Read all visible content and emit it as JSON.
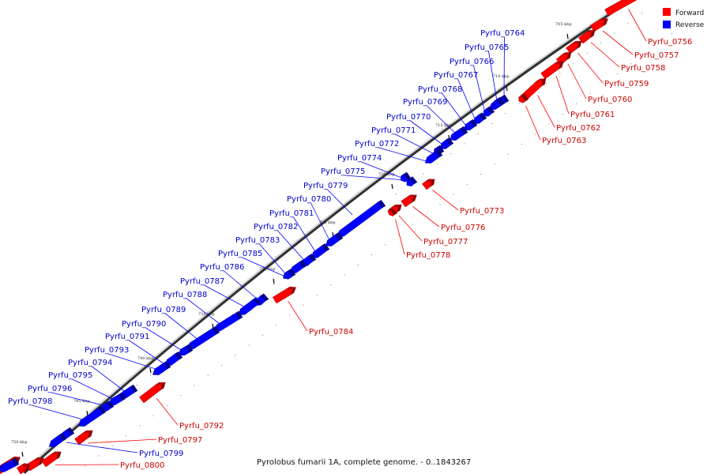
{
  "caption": "Pyrolobus fumarii 1A, complete genome. - 0..1843267",
  "legend": [
    {
      "label": "Forward",
      "color": "#ff0000"
    },
    {
      "label": "Reverse",
      "color": "#0000ff"
    }
  ],
  "scale_ticks": [
    "705 kbp",
    "710 kbp",
    "715 kbp",
    "720 kbp",
    "725 kbp",
    "730 kbp",
    "735 kbp",
    "740 kbp",
    "745 kbp",
    "750 kbp"
  ],
  "forward_genes": [
    "Pyrfu_0756",
    "Pyrfu_0757",
    "Pyrfu_0758",
    "Pyrfu_0759",
    "Pyrfu_0760",
    "Pyrfu_0761",
    "Pyrfu_0762",
    "Pyrfu_0763",
    "Pyrfu_0773",
    "Pyrfu_0776",
    "Pyrfu_0777",
    "Pyrfu_0778",
    "Pyrfu_0784",
    "Pyrfu_0792",
    "Pyrfu_0797",
    "Pyrfu_0800"
  ],
  "reverse_genes": [
    "Pyrfu_0764",
    "Pyrfu_0765",
    "Pyrfu_0766",
    "Pyrfu_0767",
    "Pyrfu_0768",
    "Pyrfu_0769",
    "Pyrfu_0770",
    "Pyrfu_0771",
    "Pyrfu_0772",
    "Pyrfu_0774",
    "Pyrfu_0775",
    "Pyrfu_0779",
    "Pyrfu_0780",
    "Pyrfu_0781",
    "Pyrfu_0782",
    "Pyrfu_0783",
    "Pyrfu_0785",
    "Pyrfu_0786",
    "Pyrfu_0787",
    "Pyrfu_0788",
    "Pyrfu_0789",
    "Pyrfu_0790",
    "Pyrfu_0791",
    "Pyrfu_0793",
    "Pyrfu_0794",
    "Pyrfu_0795",
    "Pyrfu_0796",
    "Pyrfu_0798",
    "Pyrfu_0799"
  ]
}
